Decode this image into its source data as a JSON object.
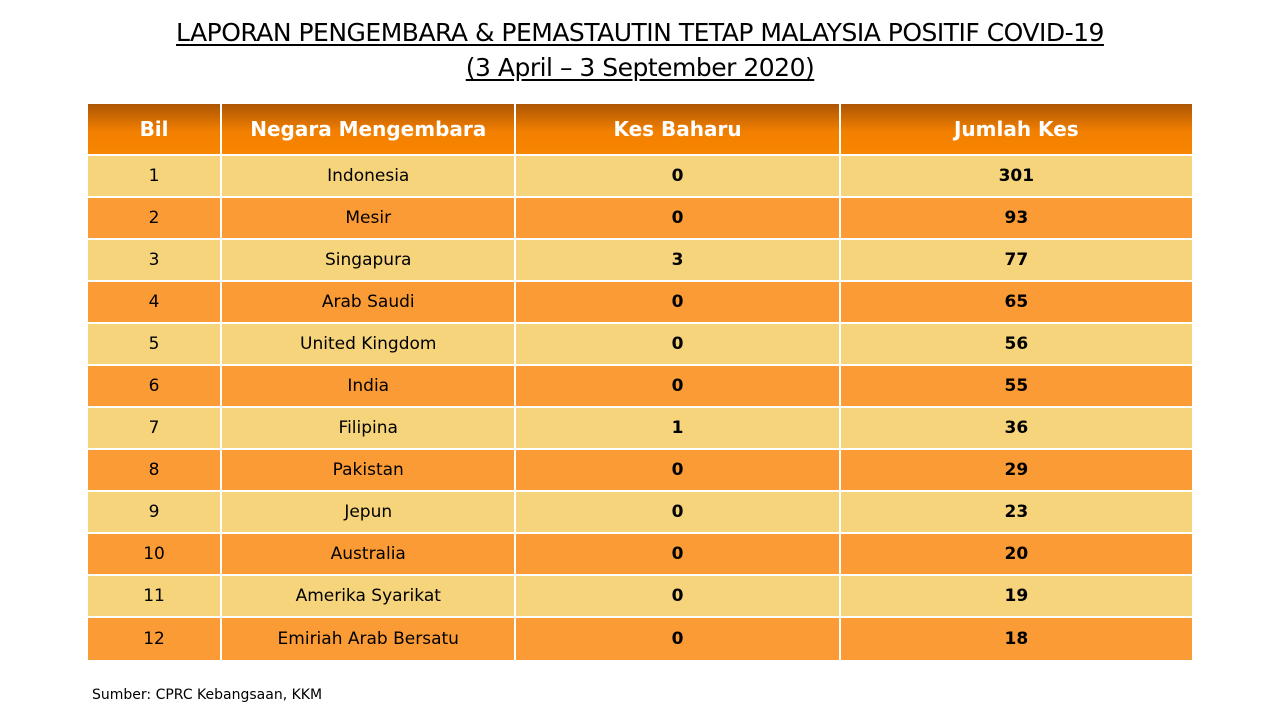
{
  "title": {
    "line1": "LAPORAN PENGEMBARA & PEMASTAUTIN TETAP MALAYSIA POSITIF COVID-19",
    "line2": "(3 April – 3 September 2020)"
  },
  "table": {
    "headers": [
      "Bil",
      "Negara Mengembara",
      "Kes Baharu",
      "Jumlah Kes"
    ],
    "rows": [
      [
        "1",
        "Indonesia",
        "0",
        "301"
      ],
      [
        "2",
        "Mesir",
        "0",
        "93"
      ],
      [
        "3",
        "Singapura",
        "3",
        "77"
      ],
      [
        "4",
        "Arab Saudi",
        "0",
        "65"
      ],
      [
        "5",
        "United Kingdom",
        "0",
        "56"
      ],
      [
        "6",
        "India",
        "0",
        "55"
      ],
      [
        "7",
        "Filipina",
        "1",
        "36"
      ],
      [
        "8",
        "Pakistan",
        "0",
        "29"
      ],
      [
        "9",
        "Jepun",
        "0",
        "23"
      ],
      [
        "10",
        "Australia",
        "0",
        "20"
      ],
      [
        "11",
        "Amerika Syarikat",
        "0",
        "19"
      ],
      [
        "12",
        "Emiriah Arab Bersatu",
        "0",
        "18"
      ]
    ]
  },
  "source": "Sumber: CPRC Kebangsaan, KKM",
  "colors": {
    "header": "#f27f00",
    "row_light": "#f5d47b",
    "row_dark": "#fb9b36"
  }
}
